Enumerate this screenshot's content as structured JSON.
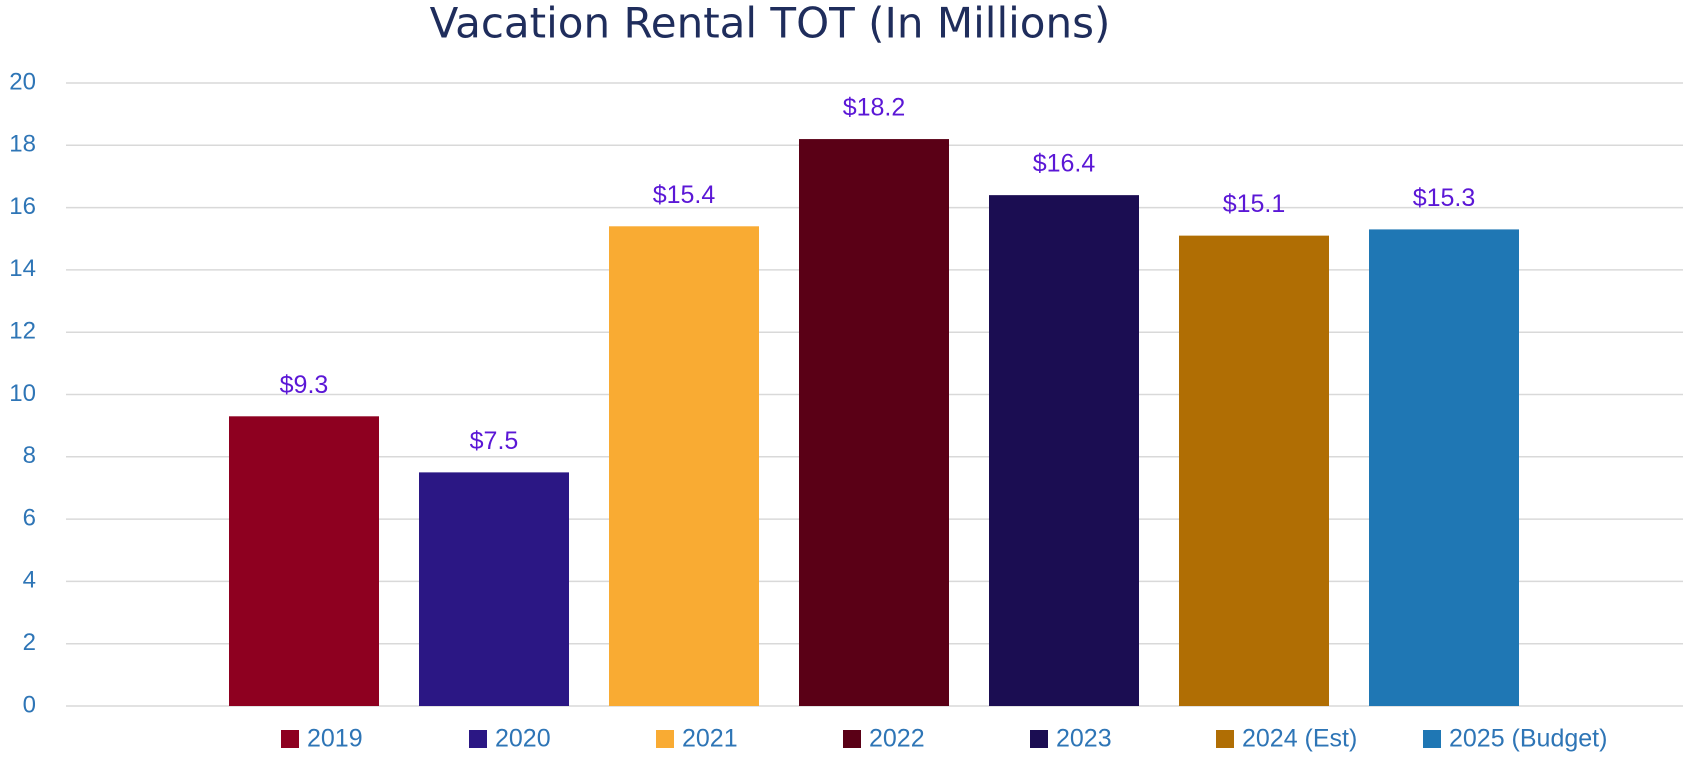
{
  "chart_data": {
    "type": "bar",
    "title": "Vacation Rental TOT (In Millions)",
    "series": [
      {
        "name": "2019",
        "color": "#8e0020",
        "values": [
          9.3
        ],
        "value_labels": [
          "$9.3"
        ]
      },
      {
        "name": "2020",
        "color": "#2b1784",
        "values": [
          7.5
        ],
        "value_labels": [
          "$7.5"
        ]
      },
      {
        "name": "2021",
        "color": "#f9ab33",
        "values": [
          15.4
        ],
        "value_labels": [
          "$15.4"
        ]
      },
      {
        "name": "2022",
        "color": "#5a0016",
        "values": [
          18.2
        ],
        "value_labels": [
          "$18.2"
        ]
      },
      {
        "name": "2023",
        "color": "#1b0d52",
        "values": [
          16.4
        ],
        "value_labels": [
          "$16.4"
        ]
      },
      {
        "name": "2024 (Est)",
        "color": "#b06e04",
        "values": [
          15.1
        ],
        "value_labels": [
          "$15.1"
        ]
      },
      {
        "name": "2025 (Budget)",
        "color": "#1f77b4",
        "values": [
          15.3
        ],
        "value_labels": [
          "$15.3"
        ]
      }
    ],
    "ylim": [
      0,
      20
    ],
    "yticks": [
      0,
      2,
      4,
      6,
      8,
      10,
      12,
      14,
      16,
      18,
      20
    ],
    "grid": true,
    "legend": "bottom"
  }
}
